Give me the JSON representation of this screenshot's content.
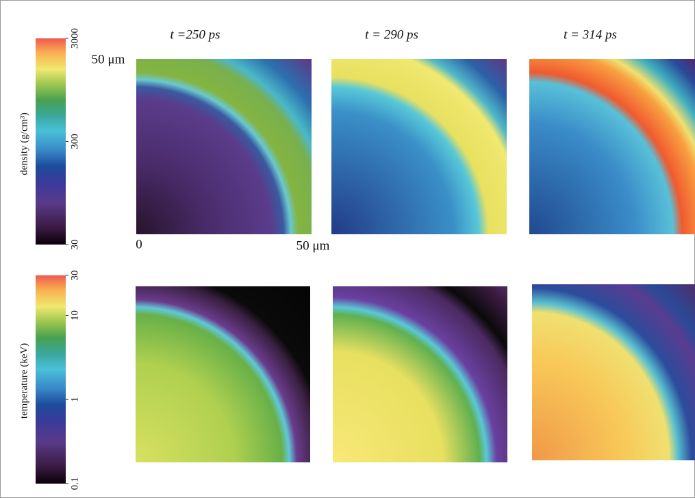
{
  "colorbars": [
    {
      "label": "density (g/cm³)",
      "lim": [
        30,
        3000
      ],
      "ticks": [
        30,
        300,
        3000
      ]
    },
    {
      "label": "temperature (keV)",
      "lim": [
        0.1,
        30
      ],
      "ticks": [
        0.1,
        1,
        10,
        30
      ]
    }
  ],
  "panels": [
    {
      "title": "t =250 ps"
    },
    {
      "title": "t = 290 ps"
    },
    {
      "title": "t = 314 ps"
    }
  ],
  "axes": {
    "y_top": "50 μm",
    "x_left": "0",
    "x_right": "50 μm"
  }
}
